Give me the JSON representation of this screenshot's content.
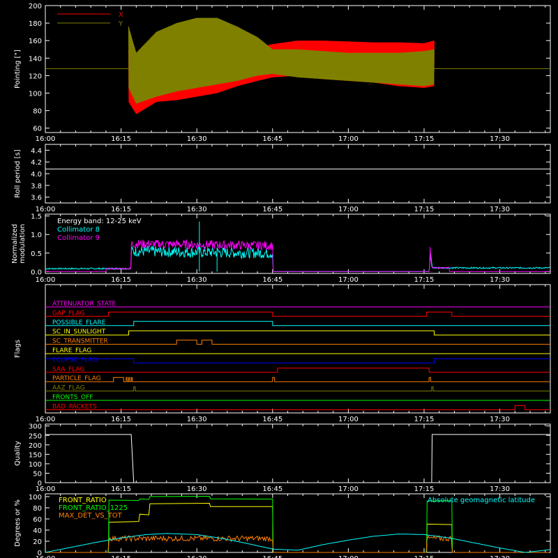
{
  "time_axis": {
    "tick_labels": [
      "16:00",
      "16:15",
      "16:30",
      "16:45",
      "17:00",
      "17:15",
      "17:30"
    ],
    "tick_minutes": [
      0,
      15,
      30,
      45,
      60,
      75,
      90
    ],
    "range_minutes": [
      0,
      100
    ]
  },
  "chart_data": [
    {
      "type": "line",
      "panel": "pointing",
      "ylabel": "Pointing [\"]",
      "ylim": [
        55,
        200
      ],
      "yticks": [
        60,
        80,
        100,
        120,
        140,
        160,
        180,
        200
      ],
      "legend": [
        {
          "name": "X",
          "color": "#ff0000"
        },
        {
          "name": "Y",
          "color": "#808000"
        }
      ],
      "baseline": 128,
      "series": [
        {
          "name": "X",
          "color": "#ff0000",
          "envelope_minutes": [
            16.5,
            18,
            22,
            26,
            30,
            34,
            38,
            42,
            45,
            50,
            55,
            60,
            65,
            70,
            75,
            77
          ],
          "upper": [
            150,
            132,
            146,
            154,
            150,
            152,
            150,
            152,
            156,
            160,
            160,
            159,
            158,
            158,
            157,
            160
          ],
          "lower": [
            90,
            76,
            90,
            92,
            96,
            100,
            108,
            114,
            118,
            120,
            116,
            114,
            112,
            108,
            106,
            108
          ]
        },
        {
          "name": "Y",
          "color": "#808000",
          "envelope_minutes": [
            16.5,
            18,
            22,
            26,
            30,
            34,
            38,
            42,
            45,
            50,
            55,
            60,
            65,
            70,
            75,
            77
          ],
          "upper": [
            176,
            146,
            170,
            180,
            186,
            186,
            176,
            164,
            150,
            150,
            148,
            146,
            146,
            146,
            148,
            150
          ],
          "lower": [
            106,
            88,
            96,
            102,
            106,
            110,
            114,
            120,
            122,
            118,
            116,
            114,
            112,
            110,
            108,
            110
          ]
        }
      ]
    },
    {
      "type": "line",
      "panel": "roll_period",
      "ylabel": "Roll period [s]",
      "ylim": [
        3.5,
        4.5
      ],
      "yticks": [
        3.6,
        3.8,
        4.0,
        4.2,
        4.4
      ],
      "series": [
        {
          "name": "",
          "color": "#ffffff",
          "x": [
            0,
            100
          ],
          "y": [
            4.08,
            4.08
          ]
        }
      ]
    },
    {
      "type": "line",
      "panel": "modulation",
      "ylabel": "Normalized modulation",
      "ylim": [
        -0.05,
        1.55
      ],
      "yticks": [
        0.0,
        0.5,
        1.0,
        1.5
      ],
      "legend": [
        {
          "name": "Energy band: 12-25 keV",
          "color": "#ffffff"
        },
        {
          "name": "Collimator 8",
          "color": "#00ffff"
        },
        {
          "name": "Collimator 9",
          "color": "#ff00ff"
        }
      ],
      "series": [
        {
          "name": "Collimator 8",
          "color": "#00ffff",
          "x": [
            12,
            17,
            17,
            45,
            45,
            76,
            76.3,
            76.6,
            80
          ],
          "level": [
            0.08,
            0.08,
            0.55,
            0.5,
            0.0,
            0.0,
            0.5,
            0.1,
            0.1
          ],
          "noise": 0.15
        },
        {
          "name": "Collimator 9",
          "color": "#ff00ff",
          "x": [
            0,
            12,
            12,
            17,
            17,
            45,
            45,
            76,
            76.2,
            76.5,
            80,
            80,
            100
          ],
          "level": [
            0.0,
            0.0,
            0.08,
            0.08,
            0.75,
            0.7,
            0.0,
            0.0,
            0.55,
            0.1,
            0.1,
            0.0,
            0.0
          ],
          "noise": 0.12
        }
      ]
    },
    {
      "type": "line",
      "panel": "flags",
      "ylabel": "Flags",
      "flags": [
        {
          "name": "ATTENUATOR_STATE",
          "color": "#ff00ff",
          "steps": [
            [
              0,
              0
            ]
          ]
        },
        {
          "name": "GAP_FLAG",
          "color": "#ff0000",
          "steps": [
            [
              0,
              0
            ],
            [
              12.5,
              1
            ],
            [
              45,
              0
            ],
            [
              75.5,
              1
            ],
            [
              80.5,
              0
            ]
          ]
        },
        {
          "name": "POSSIBLE_FLARE",
          "color": "#00ffff",
          "steps": [
            [
              0,
              0
            ],
            [
              17.5,
              1
            ],
            [
              45,
              0
            ]
          ]
        },
        {
          "name": "SC_IN_SUNLIGHT",
          "color": "#ffff00",
          "steps": [
            [
              0,
              0
            ],
            [
              16.5,
              1
            ],
            [
              77,
              0
            ]
          ]
        },
        {
          "name": "SC_TRANSMITTER",
          "color": "#ff8000",
          "steps": [
            [
              0,
              0
            ],
            [
              26,
              1
            ],
            [
              30,
              0
            ],
            [
              31,
              1
            ],
            [
              33,
              0
            ]
          ]
        },
        {
          "name": "FLARE_FLAG",
          "color": "#ffff00",
          "steps": [
            [
              0,
              0
            ]
          ]
        },
        {
          "name": "ECLIPSE_FLAG",
          "color": "#0000ff",
          "steps": [
            [
              0,
              1
            ],
            [
              17.5,
              0
            ],
            [
              77,
              1
            ]
          ]
        },
        {
          "name": "SAA_FLAG",
          "color": "#ff0000",
          "steps": [
            [
              0,
              0
            ],
            [
              46,
              1
            ],
            [
              76,
              0
            ]
          ]
        },
        {
          "name": "PARTICLE_FLAG",
          "color": "#ff8000",
          "steps": [
            [
              0,
              0
            ],
            [
              13.5,
              1
            ],
            [
              15.5,
              0
            ],
            [
              16,
              1
            ],
            [
              16.2,
              0
            ],
            [
              16.5,
              1
            ],
            [
              16.7,
              0
            ],
            [
              17,
              1
            ],
            [
              17.2,
              0
            ],
            [
              45,
              1
            ],
            [
              45.4,
              0
            ],
            [
              76,
              1
            ],
            [
              76.3,
              0
            ]
          ]
        },
        {
          "name": "AAZ_FLAG",
          "color": "#808000",
          "steps": [
            [
              0,
              0
            ],
            [
              17.5,
              1
            ],
            [
              17.8,
              0
            ],
            [
              76.5,
              1
            ],
            [
              76.8,
              0
            ]
          ]
        },
        {
          "name": "FRONTS_OFF",
          "color": "#00ff00",
          "steps": [
            [
              0,
              0
            ]
          ]
        },
        {
          "name": "BAD_PACKETS",
          "color": "#ff0000",
          "steps": [
            [
              0,
              0
            ],
            [
              93,
              1
            ],
            [
              95,
              0
            ]
          ]
        }
      ]
    },
    {
      "type": "line",
      "panel": "quality",
      "ylabel": "Quality",
      "ylim": [
        0,
        310
      ],
      "yticks": [
        0,
        50,
        100,
        150,
        200,
        250,
        300
      ],
      "series": [
        {
          "name": "",
          "color": "#ffffff",
          "x": [
            0,
            17,
            17.5,
            76.5,
            76.6,
            100
          ],
          "y": [
            255,
            255,
            0,
            0,
            255,
            255
          ]
        }
      ]
    },
    {
      "type": "line",
      "panel": "geomag",
      "ylabel": "Degrees or %",
      "ylim": [
        0,
        105
      ],
      "yticks": [
        0,
        20,
        40,
        60,
        80,
        100
      ],
      "legend": [
        {
          "name": "FRONT_RATIO",
          "color": "#ffff00"
        },
        {
          "name": "FRONT_RATIO_1225",
          "color": "#00ff00"
        },
        {
          "name": "MAX_DET_VS_TOT",
          "color": "#ff8000"
        },
        {
          "name": "Absolute geomagnetic latitude",
          "color": "#00ffff"
        }
      ],
      "series": [
        {
          "name": "FRONT_RATIO",
          "color": "#ffff00",
          "x": [
            12.5,
            12.6,
            18.5,
            18.7,
            20.5,
            20.7,
            32.5,
            32.7,
            45,
            45.1,
            75.5,
            75.6,
            80.5,
            80.6
          ],
          "y": [
            0,
            55,
            55,
            68,
            68,
            88,
            88,
            82,
            82,
            0,
            0,
            50,
            50,
            0
          ]
        },
        {
          "name": "FRONT_RATIO_1225",
          "color": "#00ff00",
          "x": [
            12.5,
            12.6,
            18.5,
            18.7,
            20.5,
            20.7,
            32.5,
            32.7,
            45,
            45.1,
            75.5,
            75.6,
            80.5,
            80.6
          ],
          "y": [
            0,
            94,
            94,
            96,
            96,
            100,
            100,
            95,
            95,
            0,
            0,
            93,
            93,
            0
          ]
        },
        {
          "name": "MAX_DET_VS_TOT",
          "color": "#ff8000",
          "x": [
            12.5,
            12.6,
            45,
            45.1,
            75.5,
            75.6,
            80.5,
            80.6
          ],
          "y": [
            0,
            25,
            25,
            0,
            0,
            25,
            25,
            0
          ]
        },
        {
          "name": "Absolute geomagnetic latitude",
          "color": "#00ffff",
          "x": [
            0,
            5,
            10,
            15,
            20,
            24,
            30,
            35,
            40,
            45,
            50,
            55,
            60,
            65,
            70,
            75,
            80,
            85,
            90,
            95,
            100
          ],
          "y": [
            0,
            9,
            18,
            26,
            32,
            34,
            32,
            25,
            16,
            6,
            4,
            14,
            22,
            29,
            33,
            32,
            26,
            17,
            8,
            0,
            5
          ]
        }
      ]
    }
  ]
}
